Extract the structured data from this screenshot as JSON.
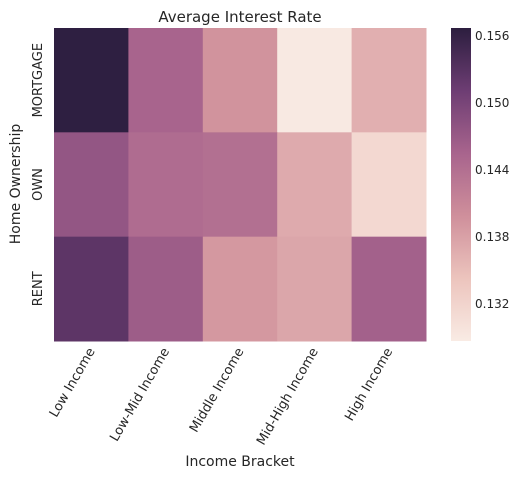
{
  "chart_data": {
    "type": "heatmap",
    "title": "Average Interest Rate",
    "xlabel": "Income Bracket",
    "ylabel": "Home Ownership",
    "x_categories": [
      "Low Income",
      "Low-Mid Income",
      "Middle Income",
      "Mid-High Income",
      "High Income"
    ],
    "y_categories": [
      "MORTGAGE",
      "OWN",
      "RENT"
    ],
    "values": [
      [
        0.1565,
        0.1455,
        0.1395,
        0.129,
        0.1365
      ],
      [
        0.1475,
        0.1445,
        0.144,
        0.137,
        0.1315
      ],
      [
        0.1525,
        0.1465,
        0.139,
        0.1375,
        0.146
      ]
    ],
    "colorbar": {
      "range": [
        0.1287,
        0.1567
      ],
      "ticks": [
        "0.132",
        "0.138",
        "0.144",
        "0.150",
        "0.156"
      ],
      "colors": [
        "#f9ebe4",
        "#ecc4bd",
        "#cf8f9b",
        "#a8648d",
        "#6d3d73",
        "#2c1e3f"
      ]
    }
  }
}
